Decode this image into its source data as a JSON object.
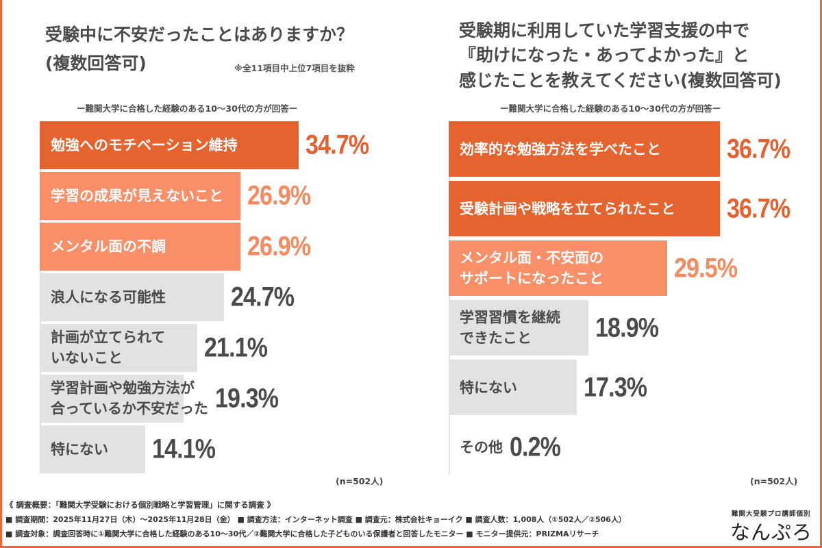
{
  "chart_data": [
    {
      "type": "bar",
      "orientation": "horizontal",
      "title": "受験中に不安だったことはありますか？(複数回答可)",
      "title_lines": [
        "受験中に不安だったことはありますか？",
        "(複数回答可)"
      ],
      "note": "※全11項目中上位7項目を抜粋",
      "subtitle": "ー難関大学に合格した経験のある10〜30代の方が回答ー",
      "sample": "(n=502人)",
      "categories": [
        "勉強へのモチベーション維持",
        "学習の成果が見えないこと",
        "メンタル面の不調",
        "浪人になる可能性",
        "計画が立てられて\nいないこと",
        "学習計画や勉強方法が\n合っているか不安だった",
        "特にない"
      ],
      "values": [
        34.7,
        26.9,
        26.9,
        24.7,
        21.1,
        19.3,
        14.1
      ],
      "value_labels": [
        "34.7%",
        "26.9%",
        "26.9%",
        "24.7%",
        "21.1%",
        "19.3%",
        "14.1%"
      ],
      "tiers": [
        "top",
        "mid",
        "mid",
        "low",
        "low",
        "low",
        "low"
      ],
      "unit": "%",
      "xlim": [
        0,
        40
      ],
      "grid": false,
      "legend": "none"
    },
    {
      "type": "bar",
      "orientation": "horizontal",
      "title": "受験期に利用していた学習支援の中で『助けになった・あってよかった』と感じたことを教えてください(複数回答可)",
      "title_lines": [
        "受験期に利用していた学習支援の中で",
        "『助けになった・あってよかった』と",
        "感じたことを教えてください(複数回答可)"
      ],
      "subtitle": "ー難関大学に合格した経験のある10〜30代の方が回答ー",
      "sample": "(n=502人)",
      "categories": [
        "効率的な勉強方法を学べたこと",
        "受験計画や戦略を立てられたこと",
        "メンタル面・不安面の\nサポートになったこと",
        "学習習慣を継続\nできたこと",
        "特にない",
        "その他"
      ],
      "values": [
        36.7,
        36.7,
        29.5,
        18.9,
        17.3,
        0.2
      ],
      "value_labels": [
        "36.7%",
        "36.7%",
        "29.5%",
        "18.9%",
        "17.3%",
        "0.2%"
      ],
      "tiers": [
        "top",
        "top",
        "mid",
        "low",
        "low",
        "low"
      ],
      "unit": "%",
      "xlim": [
        0,
        40
      ],
      "grid": false,
      "legend": "none"
    }
  ],
  "colors": {
    "top": "#E5632F",
    "mid": "#F98F68",
    "low": "#E3E1E3",
    "top_text": "#E5602E",
    "mid_text": "#F58A60",
    "low_text": "#4a4a4a",
    "frame": "#E8673C"
  },
  "footer": {
    "heading": "《 調査概要：「難関大学受験における個別戦略と学習管理」に関する調査 》",
    "line1": "■ 調査期間：2025年11月27日（木）〜2025年11月28日（金） ■ 調査方法：インターネット調査 ■ 調査元：株式会社キョーイク ■ 調査人数：1,008人（①502人／②506人）",
    "line2": "■ 調査対象：調査回答時に①難関大学に合格した経験のある10〜30代／②難関大学に合格した子どものいる保護者と回答したモニター ■ モニター提供元：PRIZMAリサーチ"
  },
  "logo": {
    "tagline": "難関大受験プロ講師個別",
    "name": "なんぷろ"
  }
}
